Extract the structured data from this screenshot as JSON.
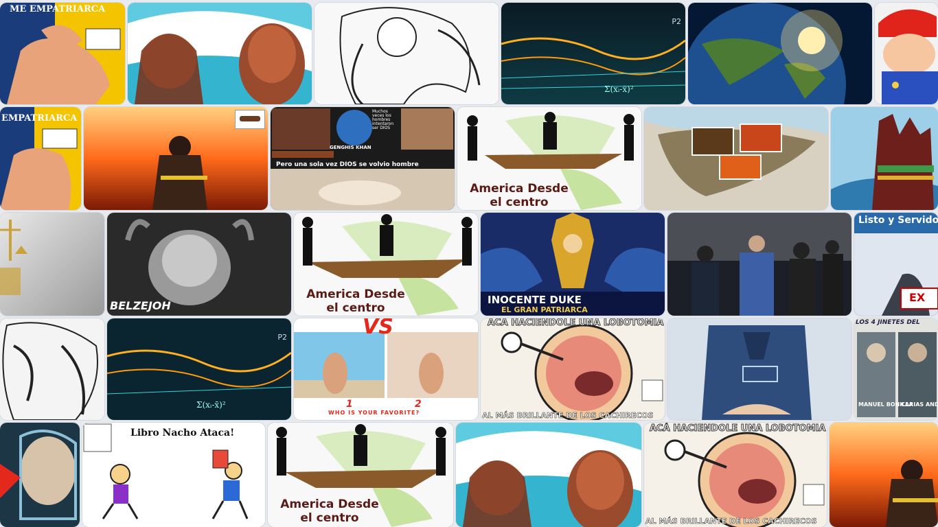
{
  "tiles": {
    "empatriarca_top": "ME EMPATRIARCA",
    "empatriarca_mid": "EMPATRIARCA",
    "america_label_1": "America Desde",
    "america_label_2": "el centro",
    "dios_caption": "Pero una sola vez DIOS se volvio hombre",
    "dios_side": "Muchos veces los hombres intentaron ser DIOS",
    "genghis": "GENGHIS KHAN",
    "inocente_1": "INOCENTE DUKE",
    "inocente_2": "EL GRAN PATRIARCA",
    "listo": "Listo y Servido",
    "belze": "BELZEJOH",
    "vs": "VS",
    "vs_one": "1",
    "vs_two": "2",
    "vs_question": "WHO IS YOUR FAVORITE?",
    "lobotomia": "ACÁ HACIENDOLE UNA LOBOTOMIA",
    "brillante": "AL MÁS BRILLANTE DE LOS CACHIRECOS",
    "ex": "EX",
    "manuel": "MANUEL BONILLA",
    "carias": "CARIAS ANDINO",
    "jinetes": "LOS 4 JINETES DEL",
    "libro": "Libro Nacho Ataca!",
    "p2": "P2"
  }
}
